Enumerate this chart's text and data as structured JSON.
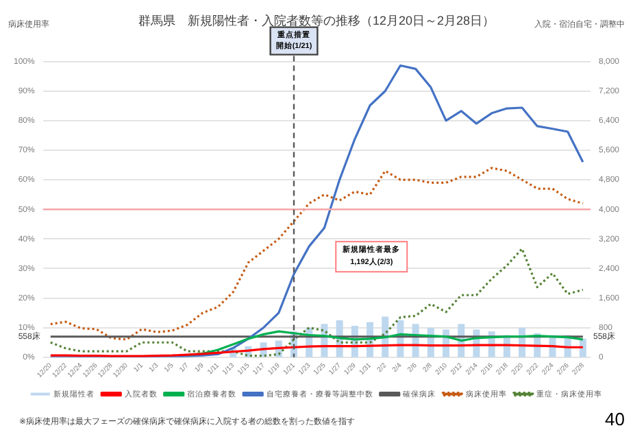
{
  "chart_data": {
    "type": "line",
    "title": "群馬県　新規陽性者・入院者数等の推移（12月20日～2月28日）",
    "ylabel": "病床使用率",
    "y2label": "入院・宿泊自宅・調整中",
    "categories": [
      "12/20",
      "12/22",
      "12/24",
      "12/26",
      "12/28",
      "12/30",
      "1/1",
      "1/3",
      "1/5",
      "1/7",
      "1/9",
      "1/11",
      "1/13",
      "1/15",
      "1/17",
      "1/19",
      "1/21",
      "1/23",
      "1/25",
      "1/27",
      "1/29",
      "1/31",
      "2/2",
      "2/4",
      "2/6",
      "2/8",
      "2/10",
      "2/12",
      "2/14",
      "2/16",
      "2/18",
      "2/20",
      "2/22",
      "2/24",
      "2/26",
      "2/28"
    ],
    "series": [
      {
        "name": "新規陽性者",
        "type": "bar",
        "axis": "y2",
        "color": "#bdd7ee",
        "values": [
          null,
          null,
          null,
          null,
          null,
          null,
          null,
          null,
          null,
          null,
          null,
          null,
          250,
          300,
          400,
          450,
          700,
          800,
          900,
          1000,
          850,
          950,
          1100,
          1000,
          900,
          800,
          750,
          900,
          750,
          700,
          600,
          800,
          650,
          600,
          600,
          500
        ]
      },
      {
        "name": "入院者数",
        "axis": "y2",
        "color": "#ff0000",
        "line_style": "solid",
        "values": [
          50,
          50,
          40,
          40,
          30,
          30,
          30,
          40,
          50,
          70,
          90,
          120,
          150,
          180,
          220,
          250,
          270,
          290,
          300,
          300,
          300,
          310,
          320,
          330,
          330,
          320,
          320,
          320,
          330,
          330,
          330,
          320,
          310,
          300,
          270,
          270
        ]
      },
      {
        "name": "宿泊療養者数",
        "axis": "y2",
        "color": "#00b050",
        "line_style": "solid",
        "values": [
          null,
          null,
          null,
          null,
          null,
          null,
          null,
          null,
          null,
          60,
          100,
          200,
          350,
          500,
          620,
          700,
          650,
          600,
          580,
          520,
          480,
          500,
          540,
          620,
          600,
          580,
          560,
          450,
          520,
          540,
          560,
          560,
          580,
          560,
          540,
          480
        ]
      },
      {
        "name": "自宅療養者・療養等調整中数",
        "axis": "y2",
        "color": "#4472c4",
        "line_style": "solid",
        "values": [
          0,
          0,
          0,
          0,
          0,
          0,
          0,
          0,
          20,
          30,
          50,
          80,
          250,
          500,
          800,
          1200,
          2250,
          3000,
          3500,
          4800,
          5900,
          6810,
          7200,
          7890,
          7800,
          7300,
          6400,
          6660,
          6320,
          6600,
          6730,
          6750,
          6250,
          6180,
          6100,
          5280
        ]
      },
      {
        "name": "確保病床",
        "axis": "y2",
        "color": "#595959",
        "line_style": "solid",
        "values": [
          558,
          558,
          558,
          558,
          558,
          558,
          558,
          558,
          558,
          558,
          558,
          558,
          558,
          558,
          558,
          558,
          558,
          558,
          558,
          558,
          558,
          558,
          558,
          558,
          558,
          558,
          558,
          558,
          558,
          558,
          558,
          558,
          558,
          558,
          558,
          558
        ]
      },
      {
        "name": "病床使用率",
        "axis": "y",
        "color": "#c55a11",
        "line_style": "dotted",
        "values": [
          11.2,
          12,
          9.8,
          9.5,
          6.5,
          6,
          9.5,
          8.5,
          9,
          11,
          15,
          17,
          22,
          32,
          36,
          40,
          46,
          52,
          55,
          53,
          56,
          55,
          63,
          60,
          60,
          59,
          59,
          61,
          61,
          64,
          63,
          60,
          57,
          57,
          53.5,
          52
        ]
      },
      {
        "name": "重症・病床使用率",
        "axis": "y",
        "color": "#548235",
        "line_style": "dotted",
        "values": [
          5,
          3,
          2,
          2,
          2,
          2,
          5,
          5,
          5,
          2,
          2,
          2,
          2,
          0.5,
          0.5,
          1,
          6,
          10,
          9,
          5,
          5,
          5,
          8,
          13.5,
          14,
          18,
          15.3,
          21,
          21,
          26.5,
          31,
          36.7,
          23.7,
          28.4,
          21.4,
          22.8
        ]
      }
    ],
    "ylim": [
      0,
      100
    ],
    "yticks": [
      {
        "value": 0,
        "label": "0%"
      },
      {
        "value": 10,
        "label": "10%"
      },
      {
        "value": 20,
        "label": "20%"
      },
      {
        "value": 30,
        "label": "30%"
      },
      {
        "value": 40,
        "label": "40%"
      },
      {
        "value": 50,
        "label": "50%"
      },
      {
        "value": 60,
        "label": "60%"
      },
      {
        "value": 70,
        "label": "70%"
      },
      {
        "value": 80,
        "label": "80%"
      },
      {
        "value": 90,
        "label": "90%"
      },
      {
        "value": 100,
        "label": "100%"
      }
    ],
    "y2lim": [
      0,
      8000
    ],
    "y2ticks": [
      0,
      800,
      {
        "value": 1600,
        "label": "1,600"
      },
      {
        "value": 2400,
        "label": "2,400"
      },
      {
        "value": 3200,
        "label": "3,200"
      },
      {
        "value": 4000,
        "label": "4,000"
      },
      {
        "value": 4800,
        "label": "4,800"
      },
      {
        "value": 5600,
        "label": "5,600"
      },
      {
        "value": 6400,
        "label": "6,400"
      },
      {
        "value": 7200,
        "label": "7,200"
      },
      {
        "value": 8000,
        "label": "8,000"
      }
    ],
    "grid": "y",
    "legend": "bottom",
    "marker": "none",
    "ref_lines": [
      {
        "axis": "y",
        "value": 50,
        "color": "#f4a6a6",
        "line_style": "solid"
      },
      {
        "axis": "x",
        "value": "1/21",
        "label": "重点措置開始(1/21)",
        "color": "#595959",
        "line_style": "dashed"
      }
    ],
    "annotations": [
      "新規陽性者最多\n1,192人(2/3)",
      "※病床使用率は最大フェーズの確保病床で確保病床に入院する者の総数を割った数値を指す",
      "40",
      "558床",
      "558床"
    ]
  }
}
